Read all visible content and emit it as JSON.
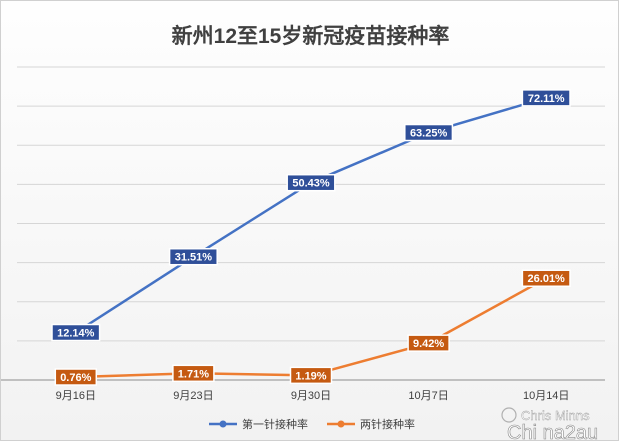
{
  "chart_data": {
    "type": "line",
    "title": "新州12至15岁新冠疫苗接种率",
    "categories": [
      "9月16日",
      "9月23日",
      "9月30日",
      "10月7日",
      "10月14日"
    ],
    "ylim": [
      0,
      80
    ],
    "grid": true,
    "legend_position": "bottom",
    "series": [
      {
        "name": "第一针接种率",
        "color": "#4472c4",
        "label_bg": "#2f4f99",
        "values": [
          12.14,
          31.51,
          50.43,
          63.25,
          72.11
        ],
        "labels": [
          "12.14%",
          "31.51%",
          "50.43%",
          "63.25%",
          "72.11%"
        ]
      },
      {
        "name": "两针接种率",
        "color": "#ed7d31",
        "label_bg": "#c55a11",
        "values": [
          0.76,
          1.71,
          1.19,
          9.42,
          26.01
        ],
        "labels": [
          "0.76%",
          "1.71%",
          "1.19%",
          "9.42%",
          "26.01%"
        ]
      }
    ]
  },
  "watermark": {
    "line1": "Chris Minns",
    "line2": "Chi na2au"
  }
}
